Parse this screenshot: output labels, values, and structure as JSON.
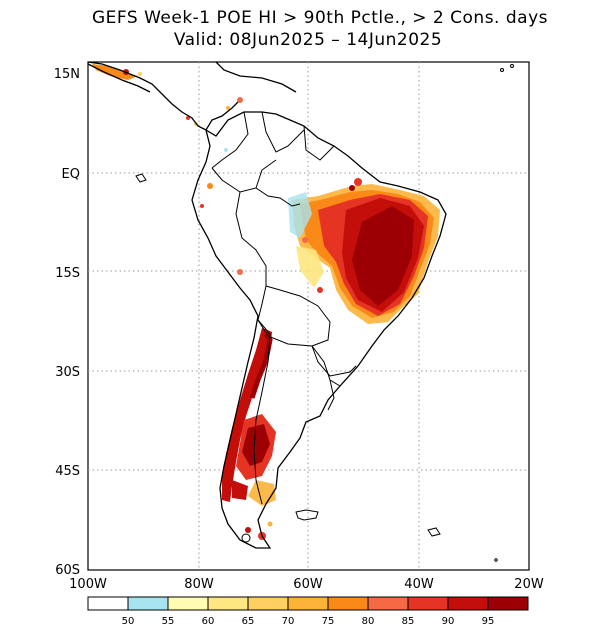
{
  "title": "GEFS Week-1 POE HI > 90th Pctle., > 2 Cons. days",
  "subtitle": "Valid: 08Jun2025 – 14Jun2025",
  "map": {
    "lat_labels": [
      "15N",
      "EQ",
      "15S",
      "30S",
      "45S",
      "60S"
    ],
    "lon_labels": [
      "100W",
      "80W",
      "60W",
      "40W",
      "20W"
    ]
  },
  "colorbar": {
    "labels": [
      "50",
      "55",
      "60",
      "65",
      "70",
      "75",
      "80",
      "85",
      "90",
      "95"
    ],
    "colors": [
      "#ffffff",
      "#a6e4f0",
      "#fffbb0",
      "#fee680",
      "#fed062",
      "#fdb338",
      "#f98a18",
      "#f46a44",
      "#e63424",
      "#c40e0a",
      "#9c0005"
    ]
  }
}
